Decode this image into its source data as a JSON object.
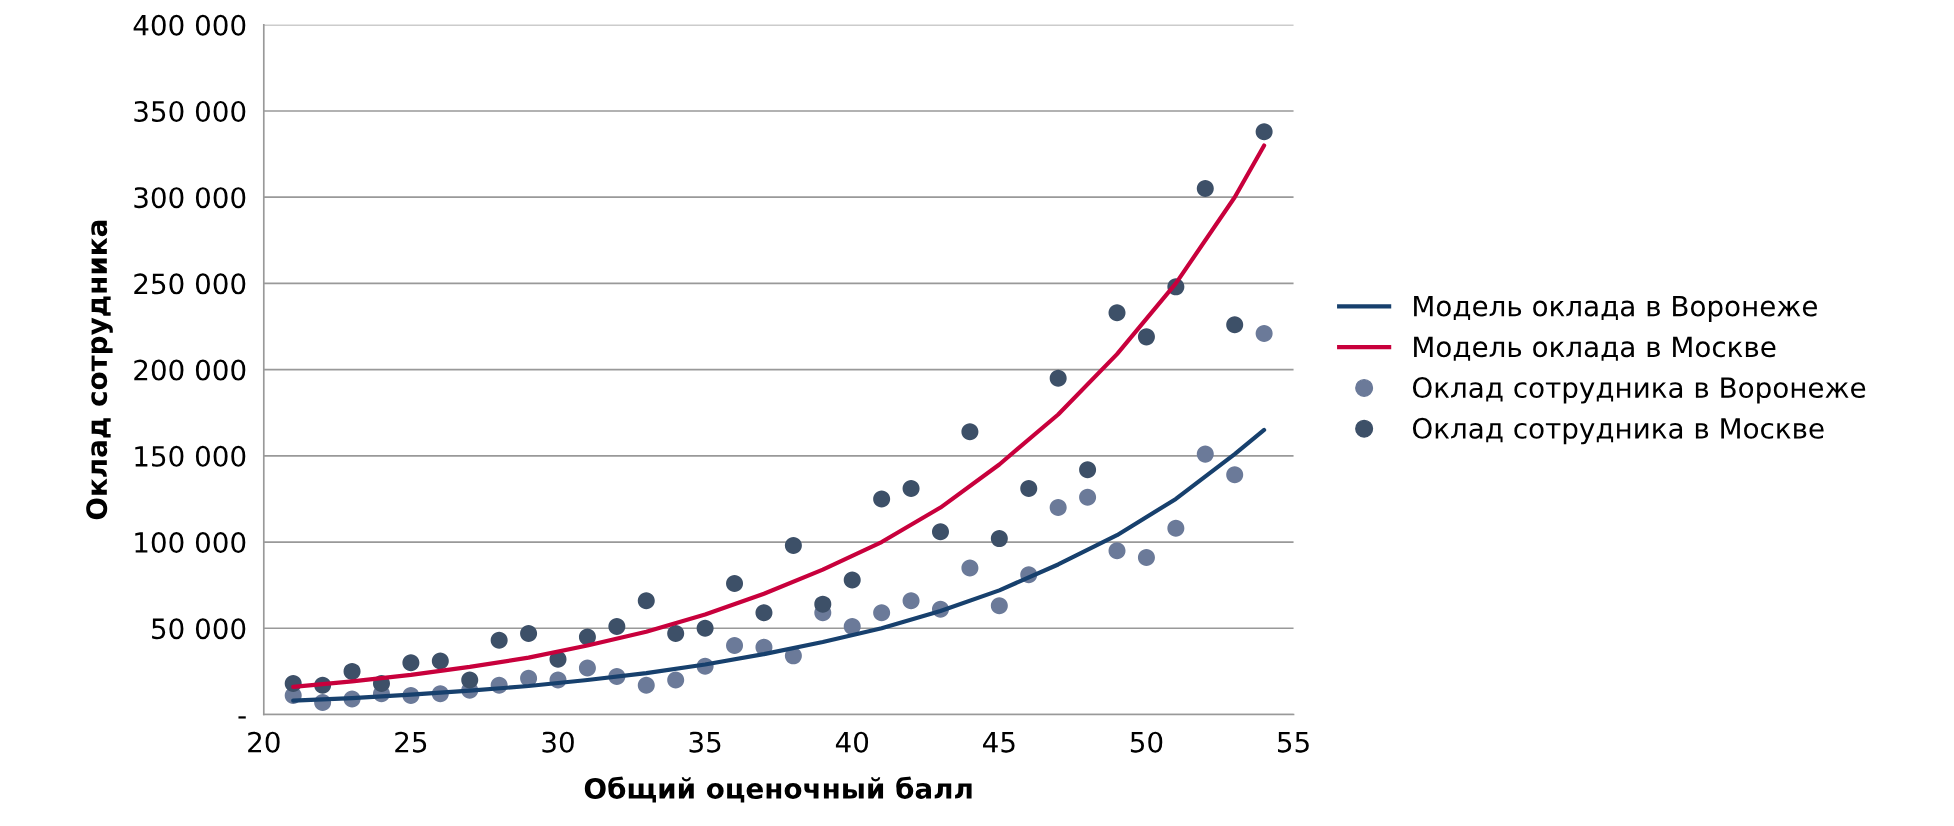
{
  "chart_data": {
    "type": "scatter",
    "xlabel": "Общий оценочный балл",
    "ylabel": "Оклад сотрудника",
    "xlim": [
      20,
      55
    ],
    "xticks": [
      20,
      25,
      30,
      35,
      40,
      45,
      50,
      55
    ],
    "ylim": [
      0,
      400000
    ],
    "yticks": [
      {
        "value": 0,
        "label": "-"
      },
      {
        "value": 50000,
        "label": "50 000"
      },
      {
        "value": 100000,
        "label": "100 000"
      },
      {
        "value": 150000,
        "label": "150 000"
      },
      {
        "value": 200000,
        "label": "200 000"
      },
      {
        "value": 250000,
        "label": "250 000"
      },
      {
        "value": 300000,
        "label": "300 000"
      },
      {
        "value": 350000,
        "label": "350 000"
      },
      {
        "value": 400000,
        "label": "400 000"
      }
    ],
    "grid": "y",
    "legend": "right",
    "marker": "circle",
    "series": [
      {
        "name": "Модель оклада в Воронеже",
        "type": "line",
        "marker": "none",
        "color": "#17406d",
        "x": [
          21,
          23,
          25,
          27,
          29,
          31,
          33,
          35,
          37,
          39,
          41,
          43,
          45,
          47,
          49,
          51,
          53,
          54
        ],
        "values": [
          8000,
          9500,
          11500,
          13800,
          16500,
          20000,
          24000,
          29000,
          35000,
          42000,
          50000,
          60000,
          72000,
          87000,
          104000,
          125000,
          151000,
          165000
        ]
      },
      {
        "name": "Модель оклада в Москве",
        "type": "line",
        "marker": "none",
        "color": "#c8003c",
        "x": [
          21,
          23,
          25,
          27,
          29,
          31,
          33,
          35,
          37,
          39,
          41,
          43,
          45,
          47,
          49,
          51,
          53,
          54
        ],
        "values": [
          16000,
          19200,
          23000,
          27600,
          33000,
          40000,
          48000,
          58000,
          70000,
          84000,
          100000,
          120000,
          145000,
          174000,
          209000,
          250000,
          300000,
          330000
        ]
      },
      {
        "name": "Оклад сотрудника в Воронеже",
        "color": "#6b7a99",
        "x": [
          21,
          22,
          23,
          24,
          25,
          26,
          27,
          28,
          29,
          30,
          31,
          32,
          33,
          34,
          35,
          36,
          37,
          38,
          39,
          40,
          41,
          42,
          43,
          44,
          45,
          46,
          47,
          48,
          49,
          50,
          51,
          52,
          53,
          54
        ],
        "values": [
          11000,
          7000,
          9000,
          12000,
          11000,
          12000,
          14000,
          17000,
          21000,
          20000,
          27000,
          22000,
          17000,
          20000,
          28000,
          40000,
          39000,
          34000,
          59000,
          51000,
          59000,
          66000,
          61000,
          85000,
          63000,
          81000,
          120000,
          126000,
          95000,
          91000,
          108000,
          151000,
          139000,
          221000
        ]
      },
      {
        "name": "Оклад сотрудника в Москве",
        "color": "#3d5068",
        "x": [
          21,
          22,
          23,
          24,
          25,
          26,
          27,
          28,
          29,
          30,
          31,
          32,
          33,
          34,
          35,
          36,
          37,
          38,
          39,
          40,
          41,
          42,
          43,
          44,
          45,
          46,
          47,
          48,
          49,
          50,
          51,
          52,
          53,
          54
        ],
        "values": [
          18000,
          17000,
          25000,
          18000,
          30000,
          31000,
          20000,
          43000,
          47000,
          32000,
          45000,
          51000,
          66000,
          47000,
          50000,
          76000,
          59000,
          98000,
          64000,
          78000,
          125000,
          131000,
          106000,
          164000,
          102000,
          131000,
          195000,
          142000,
          233000,
          219000,
          248000,
          305000,
          226000,
          338000
        ]
      }
    ]
  }
}
